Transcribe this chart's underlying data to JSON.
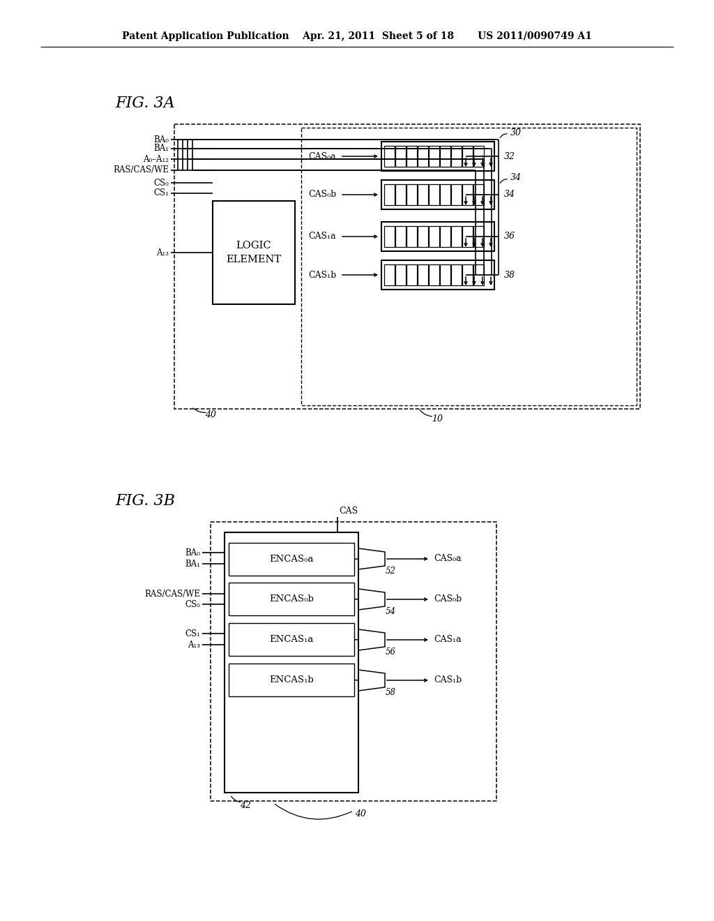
{
  "bg": "#ffffff",
  "header": "Patent Application Publication    Apr. 21, 2011  Sheet 5 of 18       US 2011/0090749 A1",
  "title3a": "FIG. 3A",
  "title3b": "FIG. 3B",
  "3a_inputs": [
    "BA₀",
    "BA₁",
    "A₀–A₁₂",
    "RAS/CAS/WE",
    "CS₀",
    "CS₁"
  ],
  "3a_a13": "A₁₃",
  "logic_text1": "LOGIC",
  "logic_text2": "ELEMENT",
  "cas_out_3a": [
    "CAS₀a",
    "CAS₀b",
    "CAS₁a",
    "CAS₁b"
  ],
  "rank_nums": [
    "32",
    "34",
    "36",
    "38"
  ],
  "label_30": "30",
  "label_10": "10",
  "label_40a": "40",
  "3b_inputs": [
    "BA₀",
    "BA₁",
    "RAS/CAS/WE",
    "CS₀",
    "CS₁",
    "A₁₃"
  ],
  "encas": [
    "ENCAS₀a",
    "ENCAS₀b",
    "ENCAS₁a",
    "ENCAS₁b"
  ],
  "cas_top": "CAS",
  "cas_out_3b": [
    "CAS₀a",
    "CAS₀b",
    "CAS₁a",
    "CAS₁b"
  ],
  "buf_nums": [
    "52",
    "54",
    "56",
    "58"
  ],
  "label_42": "42",
  "label_40b": "40"
}
